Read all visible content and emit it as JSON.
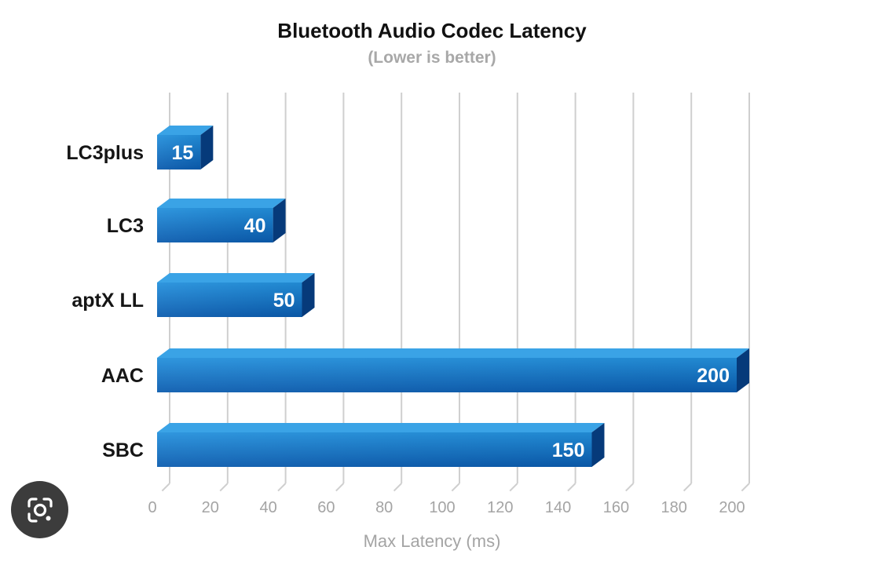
{
  "chart_data": {
    "type": "bar",
    "orientation": "horizontal",
    "title": "Bluetooth Audio Codec Latency",
    "subtitle": "(Lower is better)",
    "xlabel": "Max Latency (ms)",
    "ylabel": "",
    "categories": [
      "LC3plus",
      "LC3",
      "aptX LL",
      "AAC",
      "SBC"
    ],
    "values": [
      15,
      40,
      50,
      200,
      150
    ],
    "value_labels": [
      "15",
      "40",
      "50",
      "200",
      "150"
    ],
    "xlim": [
      0,
      200
    ],
    "x_ticks": [
      "0",
      "20",
      "40",
      "60",
      "80",
      "100",
      "120",
      "140",
      "160",
      "180",
      "200"
    ],
    "grid": "vertical",
    "bar_style": "3d",
    "colors": {
      "bar_front_top": "#1f86d6",
      "bar_front_bottom": "#0a5cb0",
      "bar_top_face": "#3aa3e6",
      "bar_side_face": "#063a7a",
      "grid": "#cfcfcf",
      "tick_text": "#a4a4a4",
      "title_text": "#111111"
    }
  },
  "overlay": {
    "lens_icon": "google-lens-icon"
  }
}
